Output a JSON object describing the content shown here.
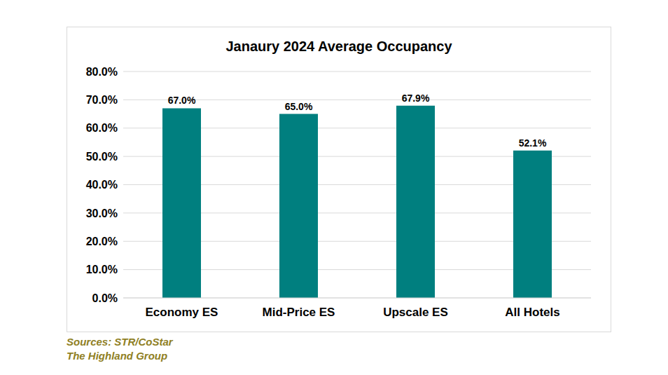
{
  "chart_data": {
    "type": "bar",
    "title": "Janaury 2024 Average Occupancy",
    "categories": [
      "Economy ES",
      "Mid-Price ES",
      "Upscale ES",
      "All Hotels"
    ],
    "values": [
      67.0,
      65.0,
      67.9,
      52.1
    ],
    "value_labels": [
      "67.0%",
      "65.0%",
      "67.9%",
      "52.1%"
    ],
    "data_labels": true,
    "color": "#007f7f",
    "ylim": [
      0,
      80
    ],
    "yticks": [
      {
        "value": 0,
        "label": "0.0%"
      },
      {
        "value": 10,
        "label": "10.0%"
      },
      {
        "value": 20,
        "label": "20.0%"
      },
      {
        "value": 30,
        "label": "30.0%"
      },
      {
        "value": 40,
        "label": "40.0%"
      },
      {
        "value": 50,
        "label": "50.0%"
      },
      {
        "value": 60,
        "label": "60.0%"
      },
      {
        "value": 70,
        "label": "70.0%"
      },
      {
        "value": 80,
        "label": "80.0%"
      }
    ],
    "grid": true,
    "annotations": [
      "Sources: STR/CoStar",
      "The Highland Group"
    ]
  }
}
